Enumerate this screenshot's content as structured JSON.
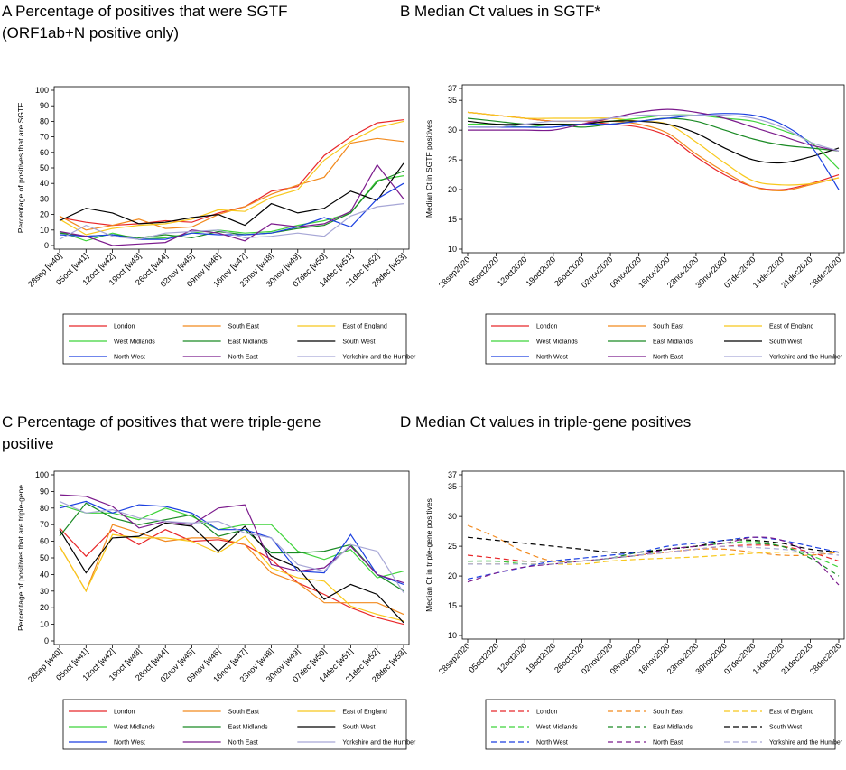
{
  "colors": {
    "London": "#e8272a",
    "South East": "#f28a1e",
    "East of England": "#f8c81c",
    "West Midlands": "#3fd33a",
    "East Midlands": "#1a8a24",
    "South West": "#000000",
    "North West": "#1a3fe0",
    "North East": "#7b1a8c",
    "Yorkshire and the Humber": "#a7a7d6"
  },
  "chart_data": [
    {
      "id": "A",
      "type": "line",
      "title_lines": [
        "A Percentage of positives that were SGTF",
        "(ORF1ab+N positive only)"
      ],
      "ylabel": "Percentage of positives that are SGTF",
      "xlabel": "",
      "ylim": [
        0,
        100
      ],
      "yticks": [
        0,
        10,
        20,
        30,
        40,
        50,
        60,
        70,
        80,
        90,
        100
      ],
      "categories": [
        "28sep [w40]",
        "05oct [w41]",
        "12oct [w42]",
        "19oct [w43]",
        "26oct [w44]",
        "02nov [w45]",
        "09nov [w46]",
        "16nov [w47]",
        "23nov [w48]",
        "30nov [w49]",
        "07dec [w50]",
        "14dec [w51]",
        "21dec [w52]",
        "28dec [w53]"
      ],
      "series": [
        {
          "name": "London",
          "values": [
            18,
            15,
            13,
            14,
            16,
            15,
            21,
            25,
            35,
            38,
            58,
            70,
            79,
            81
          ],
          "dash": false
        },
        {
          "name": "South East",
          "values": [
            19,
            10,
            13,
            17,
            11,
            12,
            20,
            25,
            33,
            39,
            44,
            66,
            69,
            67
          ],
          "dash": false
        },
        {
          "name": "East of England",
          "values": [
            17,
            7,
            11,
            13,
            14,
            17,
            23,
            22,
            31,
            36,
            55,
            67,
            76,
            80
          ],
          "dash": false
        },
        {
          "name": "West Midlands",
          "values": [
            9,
            3,
            8,
            4,
            5,
            8,
            10,
            8,
            9,
            13,
            16,
            21,
            42,
            45
          ],
          "dash": false
        },
        {
          "name": "East Midlands",
          "values": [
            8,
            6,
            7,
            5,
            7,
            5,
            9,
            7,
            8,
            11,
            13,
            21,
            41,
            48
          ],
          "dash": false
        },
        {
          "name": "South West",
          "values": [
            16,
            24,
            21,
            14,
            15,
            18,
            20,
            13,
            27,
            21,
            24,
            35,
            29,
            53
          ],
          "dash": false
        },
        {
          "name": "North West",
          "values": [
            7,
            6,
            7,
            4,
            4,
            8,
            7,
            7,
            8,
            12,
            18,
            12,
            30,
            40
          ],
          "dash": false
        },
        {
          "name": "North East",
          "values": [
            9,
            6,
            0,
            1,
            2,
            10,
            8,
            3,
            14,
            12,
            14,
            22,
            52,
            30
          ],
          "dash": false
        },
        {
          "name": "Yorkshire and the Humber",
          "values": [
            4,
            13,
            6,
            4,
            8,
            9,
            10,
            5,
            6,
            8,
            6,
            19,
            25,
            27
          ],
          "dash": false
        }
      ],
      "legend": [
        "London",
        "South East",
        "East of England",
        "West Midlands",
        "East Midlands",
        "South West",
        "North West",
        "North East",
        "Yorkshire and the Humber"
      ]
    },
    {
      "id": "B",
      "type": "line",
      "title_lines": [
        "B Median Ct values in SGTF*"
      ],
      "ylabel": "Median Ct in SGTF positives",
      "xlabel": "",
      "ylim": [
        10,
        37
      ],
      "yticks": [
        10,
        15,
        20,
        25,
        30,
        35,
        37
      ],
      "categories": [
        "28sep2020",
        "05oct2020",
        "12oct2020",
        "19oct2020",
        "26oct2020",
        "02nov2020",
        "09nov2020",
        "16nov2020",
        "23nov2020",
        "30nov2020",
        "07dec2020",
        "14dec2020",
        "21dec2020",
        "28dec2020"
      ],
      "series": [
        {
          "name": "London",
          "values": [
            33,
            32.5,
            32,
            31.5,
            31.5,
            31,
            30.5,
            29,
            25.5,
            22.5,
            20.5,
            20,
            21,
            22.5
          ],
          "dash": false
        },
        {
          "name": "South East",
          "values": [
            33,
            32.5,
            32,
            31.5,
            31.5,
            31.5,
            31,
            29.5,
            26,
            23,
            20.5,
            19.8,
            20.8,
            22
          ],
          "dash": false
        },
        {
          "name": "East of England",
          "values": [
            33,
            32.5,
            32,
            32,
            32,
            32,
            31.5,
            31,
            28,
            24.5,
            21.5,
            20.8,
            21,
            22
          ],
          "dash": false
        },
        {
          "name": "West Midlands",
          "values": [
            31,
            31,
            30.5,
            31,
            31,
            31.5,
            32,
            32.5,
            32.5,
            32,
            31.5,
            30,
            28,
            23.5
          ],
          "dash": false
        },
        {
          "name": "East Midlands",
          "values": [
            32,
            31.5,
            31,
            31,
            30.5,
            31,
            31.5,
            32,
            31.5,
            30,
            28.5,
            27.5,
            27,
            26.5
          ],
          "dash": false
        },
        {
          "name": "South West",
          "values": [
            31.5,
            31,
            31,
            31,
            31,
            31.5,
            31.5,
            31,
            29.5,
            27,
            25,
            24.5,
            25.5,
            27
          ],
          "dash": false
        },
        {
          "name": "North West",
          "values": [
            30.5,
            30.5,
            30.5,
            30.5,
            31,
            31,
            31.5,
            32,
            32.5,
            32.8,
            32.5,
            31,
            27.5,
            20
          ],
          "dash": false
        },
        {
          "name": "North East",
          "values": [
            30,
            30,
            30,
            30,
            31,
            32,
            33,
            33.5,
            33,
            32,
            30.5,
            29,
            27.5,
            26.5
          ],
          "dash": false
        },
        {
          "name": "Yorkshire and the Humber",
          "values": [
            30.5,
            30.5,
            31,
            31.5,
            31.5,
            32,
            32.5,
            32.5,
            32.5,
            32.5,
            32,
            30.5,
            28,
            26.5
          ],
          "dash": false
        }
      ],
      "legend": [
        "London",
        "South East",
        "East of England",
        "West Midlands",
        "East Midlands",
        "South West",
        "North West",
        "North East",
        "Yorkshire and the Humber"
      ]
    },
    {
      "id": "C",
      "type": "line",
      "title_lines": [
        "C Percentage of positives that were triple-gene",
        "positive"
      ],
      "ylabel": "Percentage of positives that are triple-gene",
      "xlabel": "",
      "ylim": [
        0,
        100
      ],
      "yticks": [
        0,
        10,
        20,
        30,
        40,
        50,
        60,
        70,
        80,
        90,
        100
      ],
      "categories": [
        "28sep [w40]",
        "05oct [w41]",
        "12oct [w42]",
        "19oct [w43]",
        "26oct [w44]",
        "02nov [w45]",
        "09nov [w46]",
        "16nov [w47]",
        "23nov [w48]",
        "30nov [w49]",
        "07dec [w50]",
        "14dec [w51]",
        "21dec [w52]",
        "28dec [w53]"
      ],
      "series": [
        {
          "name": "London",
          "values": [
            68,
            51,
            67,
            58,
            67,
            60,
            61,
            58,
            49,
            35,
            28,
            20,
            14,
            10
          ],
          "dash": false
        },
        {
          "name": "South East",
          "values": [
            57,
            30,
            70,
            65,
            60,
            62,
            62,
            58,
            41,
            35,
            23,
            23,
            23,
            16
          ],
          "dash": false
        },
        {
          "name": "East of England",
          "values": [
            57,
            30,
            64,
            62,
            62,
            60,
            53,
            63,
            44,
            38,
            36,
            21,
            16,
            12
          ],
          "dash": false
        },
        {
          "name": "West Midlands",
          "values": [
            82,
            77,
            77,
            73,
            80,
            75,
            67,
            70,
            70,
            54,
            49,
            55,
            38,
            42
          ],
          "dash": false
        },
        {
          "name": "East Midlands",
          "values": [
            63,
            83,
            74,
            70,
            73,
            76,
            63,
            67,
            53,
            53,
            54,
            58,
            40,
            30
          ],
          "dash": false
        },
        {
          "name": "South West",
          "values": [
            67,
            41,
            62,
            63,
            71,
            69,
            54,
            69,
            51,
            44,
            25,
            34,
            28,
            11
          ],
          "dash": false
        },
        {
          "name": "North West",
          "values": [
            80,
            84,
            77,
            82,
            81,
            77,
            67,
            67,
            62,
            42,
            41,
            64,
            40,
            34
          ],
          "dash": false
        },
        {
          "name": "North East",
          "values": [
            88,
            87,
            81,
            68,
            72,
            70,
            80,
            82,
            46,
            42,
            44,
            57,
            40,
            35
          ],
          "dash": false
        },
        {
          "name": "Yorkshire and the Humber",
          "values": [
            84,
            77,
            79,
            74,
            72,
            71,
            72,
            65,
            62,
            46,
            42,
            58,
            54,
            29
          ],
          "dash": false
        }
      ],
      "legend": [
        "London",
        "South East",
        "East of England",
        "West Midlands",
        "East Midlands",
        "South West",
        "North West",
        "North East",
        "Yorkshire and the Humber"
      ]
    },
    {
      "id": "D",
      "type": "line",
      "title_lines": [
        "D Median Ct values in triple-gene positives"
      ],
      "ylabel": "Median Ct in triple-gene positives",
      "xlabel": "",
      "ylim": [
        10,
        37
      ],
      "yticks": [
        10,
        15,
        20,
        25,
        30,
        35,
        37
      ],
      "categories": [
        "28sep2020",
        "05oct2020",
        "12oct2020",
        "19oct2020",
        "26oct2020",
        "02nov2020",
        "09nov2020",
        "16nov2020",
        "23nov2020",
        "30nov2020",
        "07dec2020",
        "14dec2020",
        "21dec2020",
        "28dec2020"
      ],
      "series": [
        {
          "name": "London",
          "values": [
            23.5,
            23,
            22.5,
            22.5,
            22.5,
            23,
            23.5,
            24,
            24.5,
            25,
            25.2,
            25,
            24,
            22.5
          ],
          "dash": true
        },
        {
          "name": "South East",
          "values": [
            28.5,
            26.5,
            24,
            22.5,
            22.5,
            23,
            23.5,
            24,
            24.5,
            24.5,
            24,
            23.5,
            23.5,
            24
          ],
          "dash": true
        },
        {
          "name": "East of England",
          "values": [
            22,
            22,
            22,
            22,
            22,
            22.5,
            22.8,
            23,
            23.2,
            23.5,
            23.8,
            24,
            24,
            24
          ],
          "dash": true
        },
        {
          "name": "West Midlands",
          "values": [
            22.5,
            22.5,
            22,
            22,
            22.5,
            23,
            23.5,
            24.5,
            25,
            25.5,
            25.8,
            25,
            23.5,
            21.5
          ],
          "dash": true
        },
        {
          "name": "East Midlands",
          "values": [
            22.5,
            22.5,
            22.5,
            22.5,
            22.5,
            23,
            24,
            24.5,
            25,
            25.5,
            25.5,
            25,
            23,
            20
          ],
          "dash": true
        },
        {
          "name": "South West",
          "values": [
            26.5,
            26,
            25.5,
            25,
            24.5,
            24,
            24,
            24.5,
            25,
            26,
            26,
            25.5,
            24.5,
            24
          ],
          "dash": true
        },
        {
          "name": "North West",
          "values": [
            19.5,
            20.5,
            21.5,
            22.5,
            23,
            23.5,
            24,
            25,
            25.5,
            26,
            26.5,
            26,
            25,
            24
          ],
          "dash": true
        },
        {
          "name": "North East",
          "values": [
            19,
            20.5,
            21.5,
            22,
            22.5,
            23,
            23.5,
            24.5,
            25,
            25.5,
            26.5,
            26,
            23.5,
            18.5
          ],
          "dash": true
        },
        {
          "name": "Yorkshire and the Humber",
          "values": [
            22,
            22,
            22,
            22,
            22.5,
            23,
            23.5,
            24,
            24.5,
            25,
            24.8,
            24.5,
            24,
            23.5
          ],
          "dash": true
        }
      ],
      "legend": [
        "London",
        "South East",
        "East of England",
        "West Midlands",
        "East Midlands",
        "South West",
        "North West",
        "North East",
        "Yorkshire and the Humber"
      ]
    }
  ]
}
